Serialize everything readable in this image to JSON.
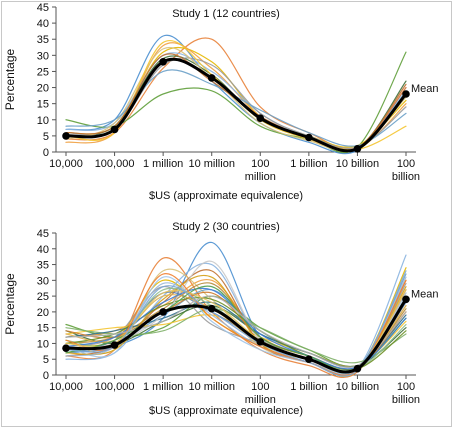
{
  "chart_data": [
    {
      "type": "line",
      "title": "Study 1 (12 countries)",
      "xlabel": "$US (approximate equivalence)",
      "ylabel": "Percentage",
      "ylim": [
        0,
        45
      ],
      "yticks": [
        0,
        5,
        10,
        15,
        20,
        25,
        30,
        35,
        40,
        45
      ],
      "categories": [
        "10,000",
        "100,000",
        "1 million",
        "10 million",
        "100 million",
        "1 billion",
        "10 billion",
        "100 billion"
      ],
      "mean_label": "Mean",
      "series": [
        {
          "values": [
            5,
            7,
            28,
            23,
            10.5,
            4.5,
            1,
            18
          ],
          "mean": true,
          "color": "#000000"
        },
        {
          "values": [
            7,
            10,
            36,
            22,
            9,
            3,
            0.5,
            20
          ],
          "color": "#4a8fd0"
        },
        {
          "values": [
            4,
            6,
            26,
            35,
            14,
            6,
            1.5,
            20
          ],
          "color": "#e8823a"
        },
        {
          "values": [
            10,
            8,
            18,
            19,
            8,
            4,
            1.5,
            31
          ],
          "color": "#5f9f3a"
        },
        {
          "values": [
            6,
            8,
            31,
            28,
            11,
            5,
            2,
            16
          ],
          "color": "#e6b800"
        },
        {
          "values": [
            3,
            6,
            33,
            26,
            11,
            4,
            1,
            15
          ],
          "color": "#f0a040"
        },
        {
          "values": [
            7,
            9,
            30,
            25,
            12,
            4.5,
            1,
            19
          ],
          "color": "#8ab4e0"
        },
        {
          "values": [
            5,
            8,
            29,
            24,
            10,
            5,
            1,
            22
          ],
          "color": "#3f6f3a"
        },
        {
          "values": [
            6,
            7,
            27,
            27,
            12,
            5,
            1.5,
            14
          ],
          "color": "#9a9a9a"
        },
        {
          "values": [
            4,
            9,
            32,
            23,
            9,
            3.5,
            1,
            17
          ],
          "color": "#d9c27a"
        },
        {
          "values": [
            8,
            10,
            25,
            21,
            13,
            6,
            2,
            12
          ],
          "color": "#6aa0c8"
        },
        {
          "values": [
            5,
            6,
            34,
            24,
            10,
            4,
            0.8,
            8
          ],
          "color": "#f4c430"
        },
        {
          "values": [
            6,
            8,
            30,
            22,
            11,
            4.5,
            1.2,
            21
          ],
          "color": "#c07030"
        }
      ]
    },
    {
      "type": "line",
      "title": "Study 2 (30 countries)",
      "xlabel": "$US (approximate equivalence)",
      "ylabel": "Percentage",
      "ylim": [
        0,
        45
      ],
      "yticks": [
        0,
        5,
        10,
        15,
        20,
        25,
        30,
        35,
        40,
        45
      ],
      "categories": [
        "10,000",
        "100,000",
        "1 million",
        "10 million",
        "100 million",
        "1 billion",
        "10 billion",
        "100 billion"
      ],
      "mean_label": "Mean",
      "series": [
        {
          "values": [
            8.5,
            9.5,
            20,
            21,
            10.5,
            5,
            2,
            24
          ],
          "mean": true,
          "color": "#000000"
        },
        {
          "values": [
            7,
            9,
            18,
            42,
            12,
            5,
            2,
            26
          ],
          "color": "#4a8fd0"
        },
        {
          "values": [
            6,
            8,
            37,
            20,
            8,
            3,
            1,
            30
          ],
          "color": "#e8823a"
        },
        {
          "values": [
            16,
            12,
            15,
            25,
            15,
            8,
            3,
            18
          ],
          "color": "#5f9f3a"
        },
        {
          "values": [
            10,
            11,
            30,
            18,
            9,
            4,
            1.5,
            34
          ],
          "color": "#e6b800"
        },
        {
          "values": [
            12,
            14,
            22,
            30,
            12,
            6,
            2.5,
            20
          ],
          "color": "#f0a040"
        },
        {
          "values": [
            5,
            7,
            25,
            35,
            11,
            5,
            2,
            38
          ],
          "color": "#8ab4e0"
        },
        {
          "values": [
            14,
            10,
            17,
            22,
            13,
            7,
            3,
            15
          ],
          "color": "#3f6f3a"
        },
        {
          "values": [
            9,
            12,
            28,
            16,
            10,
            5,
            2,
            29
          ],
          "color": "#9a9a9a"
        },
        {
          "values": [
            11,
            8,
            33,
            24,
            9,
            4,
            1.5,
            22
          ],
          "color": "#d9c27a"
        },
        {
          "values": [
            7,
            10,
            19,
            27,
            14,
            6,
            2,
            32
          ],
          "color": "#6aa0c8"
        },
        {
          "values": [
            13,
            15,
            16,
            19,
            12,
            7,
            3,
            17
          ],
          "color": "#f4c430"
        },
        {
          "values": [
            6,
            9,
            23,
            33,
            10,
            4,
            1.5,
            27
          ],
          "color": "#c07030"
        },
        {
          "values": [
            15,
            13,
            14,
            21,
            15,
            8,
            4,
            13
          ],
          "color": "#7fb069"
        },
        {
          "values": [
            8,
            11,
            26,
            20,
            11,
            5,
            2,
            23
          ],
          "color": "#5a7fb0"
        },
        {
          "values": [
            10,
            12,
            21,
            29,
            12,
            6,
            2.5,
            21
          ],
          "color": "#b58b3a"
        },
        {
          "values": [
            9,
            7,
            31,
            17,
            8,
            4,
            1.5,
            25
          ],
          "color": "#a0c4e8"
        },
        {
          "values": [
            12,
            14,
            18,
            23,
            13,
            7,
            3,
            19
          ],
          "color": "#2f6f8f"
        },
        {
          "values": [
            7,
            8,
            24,
            31,
            10,
            5,
            2,
            28
          ],
          "color": "#d4a017"
        },
        {
          "values": [
            11,
            10,
            27,
            22,
            11,
            5,
            2,
            16
          ],
          "color": "#8fbc8f"
        },
        {
          "values": [
            14,
            12,
            20,
            26,
            12,
            6,
            2.5,
            20
          ],
          "color": "#cc7a2e"
        },
        {
          "values": [
            6,
            9,
            29,
            19,
            9,
            4,
            1.5,
            31
          ],
          "color": "#9ab8d8"
        },
        {
          "values": [
            10,
            13,
            22,
            24,
            14,
            6,
            2,
            14
          ],
          "color": "#6b8e23"
        },
        {
          "values": [
            8,
            10,
            19,
            36,
            11,
            5,
            2,
            26
          ],
          "color": "#c9c9c9"
        },
        {
          "values": [
            13,
            11,
            25,
            21,
            10,
            5,
            2,
            22
          ],
          "color": "#e0b050"
        },
        {
          "values": [
            9,
            12,
            23,
            27,
            13,
            6,
            2.5,
            18
          ],
          "color": "#3b7dd8"
        },
        {
          "values": [
            11,
            9,
            32,
            18,
            9,
            4,
            1.5,
            30
          ],
          "color": "#f08030"
        },
        {
          "values": [
            7,
            11,
            20,
            28,
            12,
            6,
            2,
            24
          ],
          "color": "#4f9f4f"
        },
        {
          "values": [
            12,
            13,
            17,
            25,
            14,
            7,
            3,
            20
          ],
          "color": "#b0b0b0"
        },
        {
          "values": [
            10,
            10,
            26,
            23,
            11,
            5,
            2,
            27
          ],
          "color": "#e6c35c"
        },
        {
          "values": [
            8,
            9,
            28,
            20,
            10,
            4,
            1.5,
            33
          ],
          "color": "#7aa6d6"
        }
      ]
    }
  ]
}
